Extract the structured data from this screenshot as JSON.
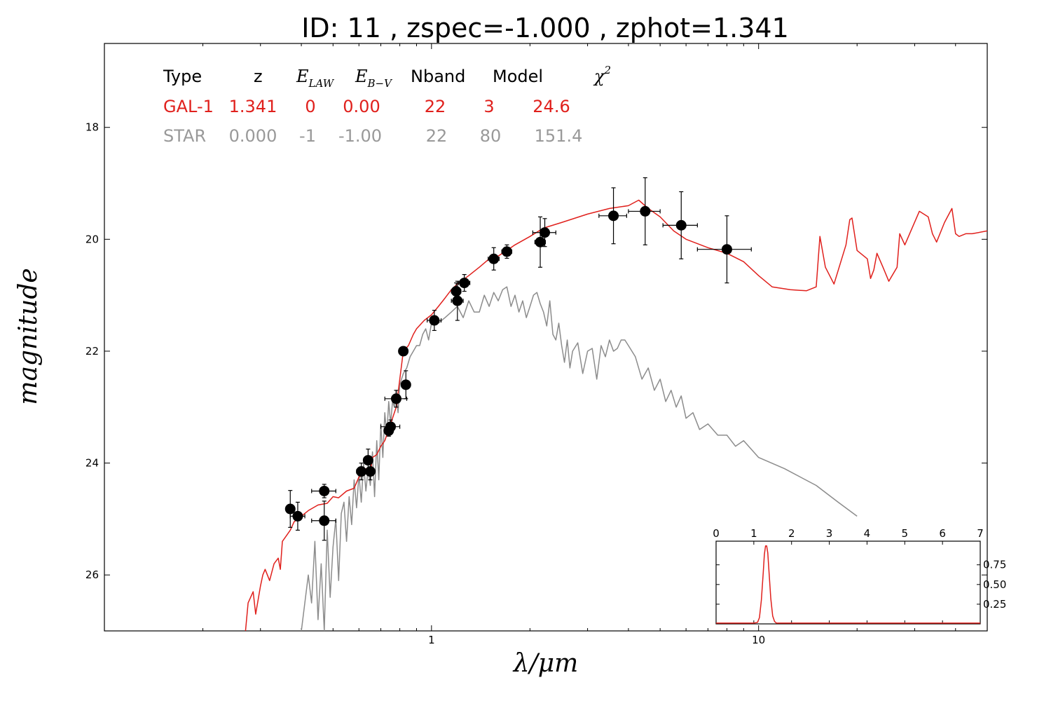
{
  "title": "ID:  11    , zspec=-1.000 , zphot=1.341",
  "colors": {
    "galaxy": "#e0201c",
    "star": "#8c8c8c",
    "points": "#000000"
  },
  "fit_table": {
    "headers": {
      "type": "Type",
      "z": "z",
      "elaw_main": "E",
      "elaw_sub": "LAW",
      "ebv_main": "E",
      "ebv_sub": "B−V",
      "nband": "Nband",
      "model": "Model",
      "chi_main": "χ",
      "chi_sup": "2"
    },
    "rows": [
      {
        "type": "GAL-1",
        "z": "1.341",
        "elaw": "0",
        "ebv": "0.00",
        "nband": "22",
        "model": "3",
        "chi2": "24.6"
      },
      {
        "type": "STAR",
        "z": "0.000",
        "elaw": "-1",
        "ebv": "-1.00",
        "nband": "22",
        "model": "80",
        "chi2": "151.4"
      }
    ]
  },
  "chart_data": [
    {
      "type": "scatter",
      "xlabel": "λ/μm",
      "ylabel": "magnitude",
      "xscale": "log",
      "xlim": [
        0.1,
        50
      ],
      "ylim": [
        27.0,
        16.5
      ],
      "y_inverted": true,
      "grid": false,
      "x_ticks": [
        {
          "value": 1,
          "label": "1"
        },
        {
          "value": 10,
          "label": "10"
        }
      ],
      "y_ticks": [
        {
          "value": 18,
          "label": "18"
        },
        {
          "value": 20,
          "label": "20"
        },
        {
          "value": 22,
          "label": "22"
        },
        {
          "value": 24,
          "label": "24"
        },
        {
          "value": 26,
          "label": "26"
        }
      ],
      "points": [
        {
          "x": 0.37,
          "y": 24.82,
          "xerr": 0.011,
          "yerr": 0.33
        },
        {
          "x": 0.39,
          "y": 24.95,
          "xerr": 0.02,
          "yerr": 0.25
        },
        {
          "x": 0.47,
          "y": 24.5,
          "xerr": 0.04,
          "yerr": 0.12
        },
        {
          "x": 0.47,
          "y": 25.03,
          "xerr": 0.04,
          "yerr": 0.35
        },
        {
          "x": 0.61,
          "y": 24.15,
          "xerr": 0.02,
          "yerr": 0.15
        },
        {
          "x": 0.64,
          "y": 23.95,
          "xerr": 0.02,
          "yerr": 0.2
        },
        {
          "x": 0.65,
          "y": 24.15,
          "xerr": 0.02,
          "yerr": 0.15
        },
        {
          "x": 0.74,
          "y": 23.42,
          "xerr": 0.018,
          "yerr": 0.1
        },
        {
          "x": 0.75,
          "y": 23.35,
          "xerr": 0.05,
          "yerr": 0.12
        },
        {
          "x": 0.78,
          "y": 22.85,
          "xerr": 0.06,
          "yerr": 0.15
        },
        {
          "x": 0.82,
          "y": 22.0,
          "xerr": 0.01,
          "yerr": 0.08
        },
        {
          "x": 0.835,
          "y": 22.6,
          "xerr": 0.02,
          "yerr": 0.25
        },
        {
          "x": 1.02,
          "y": 21.45,
          "xerr": 0.05,
          "yerr": 0.18
        },
        {
          "x": 1.19,
          "y": 20.93,
          "xerr": 0.04,
          "yerr": 0.15
        },
        {
          "x": 1.2,
          "y": 21.1,
          "xerr": 0.05,
          "yerr": 0.35
        },
        {
          "x": 1.26,
          "y": 20.78,
          "xerr": 0.05,
          "yerr": 0.15
        },
        {
          "x": 1.55,
          "y": 20.35,
          "xerr": 0.06,
          "yerr": 0.2
        },
        {
          "x": 1.7,
          "y": 20.22,
          "xerr": 0.06,
          "yerr": 0.12
        },
        {
          "x": 2.15,
          "y": 20.05,
          "xerr": 0.08,
          "yerr": 0.45
        },
        {
          "x": 2.22,
          "y": 19.88,
          "xerr": 0.18,
          "yerr": 0.25
        },
        {
          "x": 3.6,
          "y": 19.58,
          "xerr": 0.35,
          "yerr": 0.5
        },
        {
          "x": 4.5,
          "y": 19.5,
          "xerr": 0.5,
          "yerr": 0.6
        },
        {
          "x": 5.8,
          "y": 19.75,
          "xerr": 0.7,
          "yerr": 0.6
        },
        {
          "x": 8.0,
          "y": 20.18,
          "xerr": 1.5,
          "yerr": 0.6
        }
      ],
      "series": [
        {
          "kind": "galaxy-model",
          "color": "#e0201c",
          "x": [
            0.27,
            0.275,
            0.285,
            0.29,
            0.3,
            0.305,
            0.31,
            0.32,
            0.33,
            0.34,
            0.345,
            0.35,
            0.36,
            0.37,
            0.38,
            0.4,
            0.42,
            0.45,
            0.48,
            0.5,
            0.52,
            0.55,
            0.58,
            0.6,
            0.62,
            0.63,
            0.65,
            0.66,
            0.68,
            0.7,
            0.72,
            0.75,
            0.78,
            0.8,
            0.82,
            0.85,
            0.88,
            0.9,
            0.95,
            1.0,
            1.05,
            1.1,
            1.15,
            1.2,
            1.3,
            1.4,
            1.5,
            1.6,
            1.7,
            1.8,
            2.0,
            2.2,
            2.5,
            3.0,
            3.5,
            4.0,
            4.3,
            4.6,
            5.0,
            5.5,
            6.0,
            7.0,
            8.0,
            9.0,
            10.0,
            11.0,
            12.5,
            14.0,
            15.0,
            15.4,
            16.0,
            17.0,
            18.5,
            19.0,
            19.3,
            20.0,
            21.5,
            22.0,
            22.5,
            23.0,
            24.0,
            25.0,
            26.5,
            27.0,
            28.0,
            31.0,
            33.0,
            34.0,
            35.0,
            37.0,
            39.0,
            40.0,
            41.0,
            43.0,
            45.0,
            50.0
          ],
          "y": [
            27.0,
            26.5,
            26.3,
            26.7,
            26.2,
            26.0,
            25.9,
            26.1,
            25.8,
            25.7,
            25.9,
            25.4,
            25.3,
            25.2,
            25.05,
            24.95,
            24.85,
            24.75,
            24.72,
            24.6,
            24.62,
            24.5,
            24.45,
            24.25,
            24.2,
            24.1,
            24.15,
            23.9,
            23.85,
            23.7,
            23.6,
            23.3,
            23.0,
            22.5,
            22.0,
            21.9,
            21.7,
            21.6,
            21.45,
            21.35,
            21.2,
            21.05,
            20.9,
            20.8,
            20.65,
            20.5,
            20.35,
            20.3,
            20.2,
            20.1,
            19.95,
            19.8,
            19.7,
            19.55,
            19.45,
            19.4,
            19.3,
            19.45,
            19.6,
            19.85,
            20.0,
            20.15,
            20.25,
            20.4,
            20.65,
            20.85,
            20.9,
            20.92,
            20.85,
            19.95,
            20.5,
            20.8,
            20.1,
            19.65,
            19.62,
            20.2,
            20.35,
            20.7,
            20.55,
            20.25,
            20.5,
            20.75,
            20.5,
            19.9,
            20.1,
            19.5,
            19.6,
            19.9,
            20.05,
            19.7,
            19.45,
            19.9,
            19.95,
            19.9,
            19.9,
            19.85
          ]
        },
        {
          "kind": "star-model",
          "color": "#8c8c8c",
          "x": [
            0.4,
            0.42,
            0.43,
            0.44,
            0.45,
            0.46,
            0.47,
            0.48,
            0.49,
            0.5,
            0.51,
            0.52,
            0.53,
            0.54,
            0.55,
            0.56,
            0.57,
            0.58,
            0.59,
            0.6,
            0.61,
            0.62,
            0.63,
            0.64,
            0.65,
            0.66,
            0.67,
            0.68,
            0.69,
            0.7,
            0.71,
            0.72,
            0.73,
            0.74,
            0.75,
            0.76,
            0.77,
            0.78,
            0.79,
            0.8,
            0.82,
            0.84,
            0.86,
            0.88,
            0.9,
            0.92,
            0.94,
            0.96,
            0.98,
            1.0,
            1.05,
            1.1,
            1.15,
            1.2,
            1.25,
            1.3,
            1.35,
            1.4,
            1.45,
            1.5,
            1.55,
            1.6,
            1.65,
            1.7,
            1.75,
            1.8,
            1.85,
            1.9,
            1.95,
            2.0,
            2.05,
            2.1,
            2.15,
            2.2,
            2.25,
            2.3,
            2.35,
            2.4,
            2.45,
            2.5,
            2.55,
            2.6,
            2.65,
            2.7,
            2.8,
            2.9,
            3.0,
            3.1,
            3.2,
            3.3,
            3.4,
            3.5,
            3.6,
            3.7,
            3.8,
            3.9,
            4.0,
            4.2,
            4.4,
            4.6,
            4.8,
            5.0,
            5.2,
            5.4,
            5.6,
            5.8,
            6.0,
            6.3,
            6.6,
            7.0,
            7.5,
            8.0,
            8.5,
            9.0,
            10.0,
            12.0,
            15.0,
            17.5,
            20.0
          ],
          "y": [
            27.0,
            26.0,
            26.5,
            25.4,
            26.8,
            25.8,
            27.0,
            25.2,
            26.4,
            25.5,
            25.0,
            26.1,
            24.9,
            24.7,
            25.4,
            24.6,
            25.1,
            24.3,
            24.8,
            24.2,
            24.7,
            24.0,
            24.5,
            24.1,
            24.4,
            23.8,
            24.6,
            23.6,
            24.3,
            23.3,
            23.9,
            23.1,
            23.5,
            22.9,
            23.3,
            22.9,
            23.0,
            22.7,
            23.1,
            22.6,
            22.4,
            22.3,
            22.1,
            22.0,
            21.9,
            21.9,
            21.7,
            21.6,
            21.8,
            21.5,
            21.5,
            21.4,
            21.3,
            21.2,
            21.4,
            21.1,
            21.3,
            21.3,
            21.0,
            21.2,
            20.95,
            21.1,
            20.9,
            20.85,
            21.2,
            21.0,
            21.3,
            21.1,
            21.4,
            21.2,
            21.0,
            20.95,
            21.15,
            21.3,
            21.55,
            21.1,
            21.7,
            21.8,
            21.5,
            21.9,
            22.2,
            21.8,
            22.3,
            22.0,
            21.85,
            22.4,
            22.0,
            21.95,
            22.5,
            21.9,
            22.1,
            21.8,
            22.0,
            21.95,
            21.8,
            21.8,
            21.9,
            22.1,
            22.5,
            22.3,
            22.7,
            22.5,
            22.9,
            22.7,
            23.0,
            22.8,
            23.2,
            23.1,
            23.4,
            23.3,
            23.5,
            23.5,
            23.7,
            23.6,
            23.9,
            24.1,
            24.4,
            24.7,
            24.95
          ]
        }
      ]
    },
    {
      "type": "line",
      "xlim": [
        0,
        7
      ],
      "ylim": [
        0,
        1.05
      ],
      "x_ticks": [
        {
          "value": 0,
          "label": "0"
        },
        {
          "value": 1,
          "label": "1"
        },
        {
          "value": 2,
          "label": "2"
        },
        {
          "value": 3,
          "label": "3"
        },
        {
          "value": 4,
          "label": "4"
        },
        {
          "value": 5,
          "label": "5"
        },
        {
          "value": 6,
          "label": "6"
        },
        {
          "value": 7,
          "label": "7"
        }
      ],
      "y_ticks": [
        {
          "value": 0.25,
          "label": "0.25"
        },
        {
          "value": 0.5,
          "label": "0.50"
        },
        {
          "value": 0.75,
          "label": "0.75"
        }
      ],
      "series": [
        {
          "color": "#e0201c",
          "x": [
            0,
            1.0,
            1.1,
            1.15,
            1.2,
            1.25,
            1.28,
            1.31,
            1.34,
            1.37,
            1.4,
            1.45,
            1.5,
            1.55,
            1.6,
            7
          ],
          "y": [
            0.01,
            0.01,
            0.02,
            0.08,
            0.3,
            0.65,
            0.88,
            0.99,
            0.99,
            0.9,
            0.68,
            0.32,
            0.1,
            0.03,
            0.01,
            0.01
          ]
        }
      ]
    }
  ]
}
